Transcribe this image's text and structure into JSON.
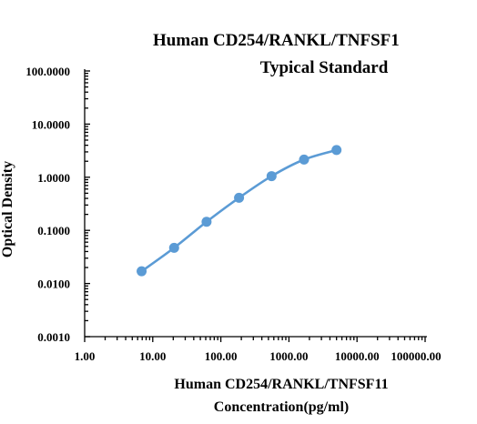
{
  "chart_data": {
    "type": "scatter",
    "title": "Human CD254/RANKL/TNFSF1",
    "subtitle": "Typical Standard",
    "xlabel": [
      "Human CD254/RANKL/TNFSF11",
      "Concentration(pg/ml)"
    ],
    "ylabel": "Optical Density",
    "x_scale": "log",
    "y_scale": "log",
    "xlim": [
      1,
      100000
    ],
    "ylim": [
      0.001,
      100
    ],
    "x_ticks": [
      "1.00",
      "10.00",
      "100.00",
      "1000.00",
      "10000.00",
      "100000.00"
    ],
    "y_ticks": [
      "0.0010",
      "0.0100",
      "0.1000",
      "1.0000",
      "10.0000",
      "100.0000"
    ],
    "grid": false,
    "series": [
      {
        "x": [
          6.86,
          20.6,
          61.7,
          185,
          556,
          1667,
          5000
        ],
        "y": [
          0.017,
          0.047,
          0.145,
          0.41,
          1.05,
          2.15,
          3.25
        ],
        "color": "#5b9bd5",
        "fit": "smooth"
      }
    ]
  }
}
